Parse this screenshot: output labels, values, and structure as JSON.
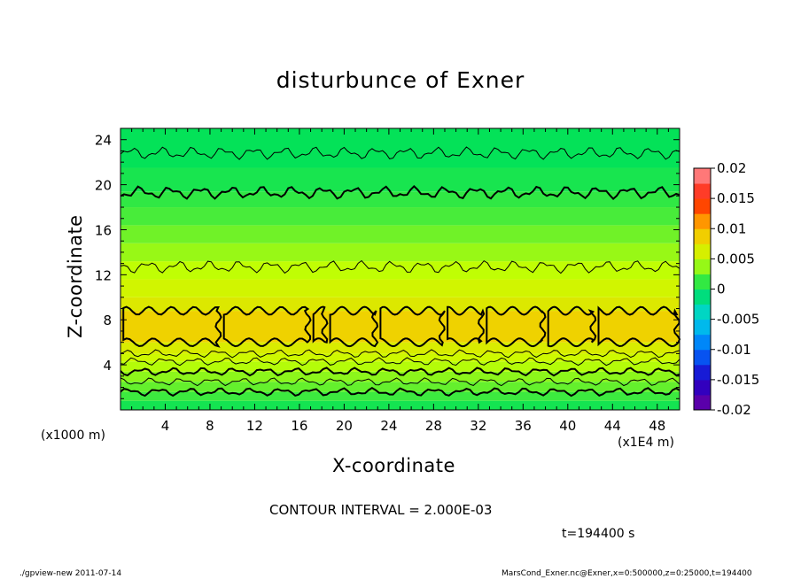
{
  "chart_data": {
    "type": "heatmap",
    "title": "disturbunce of Exner",
    "xlabel": "X-coordinate",
    "ylabel": "Z-coordinate",
    "x_unit_note": "(x1000 m)",
    "x_scale_note": "(x1E4 m)",
    "xlim": [
      0,
      50
    ],
    "ylim": [
      0,
      25
    ],
    "x_ticks": [
      4,
      8,
      12,
      16,
      20,
      24,
      28,
      32,
      36,
      40,
      44,
      48
    ],
    "y_ticks": [
      4,
      8,
      12,
      16,
      20,
      24
    ],
    "colorbar_ticks": [
      "0.02",
      "0.015",
      "0.01",
      "0.005",
      "0",
      "-0.005",
      "-0.01",
      "-0.015",
      "-0.02"
    ],
    "colorbar_range": [
      -0.02,
      0.02
    ],
    "layers": [
      {
        "z_bottom": 0,
        "z_top": 0.8,
        "value": 0.0005
      },
      {
        "z_bottom": 0.8,
        "z_top": 1.6,
        "value": 0.0015
      },
      {
        "z_bottom": 1.6,
        "z_top": 2.5,
        "value": 0.0025
      },
      {
        "z_bottom": 2.5,
        "z_top": 3.4,
        "value": 0.0035
      },
      {
        "z_bottom": 3.4,
        "z_top": 4.3,
        "value": 0.0045
      },
      {
        "z_bottom": 4.3,
        "z_top": 5.0,
        "value": 0.0055
      },
      {
        "z_bottom": 5.0,
        "z_top": 6.0,
        "value": 0.0065
      },
      {
        "z_bottom": 6.0,
        "z_top": 8.8,
        "value": 0.0085
      },
      {
        "z_bottom": 8.8,
        "z_top": 10.0,
        "value": 0.0068
      },
      {
        "z_bottom": 10.0,
        "z_top": 11.6,
        "value": 0.0058
      },
      {
        "z_bottom": 11.6,
        "z_top": 13.2,
        "value": 0.0048
      },
      {
        "z_bottom": 13.2,
        "z_top": 14.8,
        "value": 0.0038
      },
      {
        "z_bottom": 14.8,
        "z_top": 16.4,
        "value": 0.0028
      },
      {
        "z_bottom": 16.4,
        "z_top": 18.0,
        "value": 0.0018
      },
      {
        "z_bottom": 18.0,
        "z_top": 19.4,
        "value": 0.0012
      },
      {
        "z_bottom": 19.4,
        "z_top": 21.5,
        "value": 0.0006
      },
      {
        "z_bottom": 21.5,
        "z_top": 25.0,
        "value": 0.0001
      }
    ],
    "contour_interval": 0.002,
    "contour_levels_z": [
      {
        "z": 1.6,
        "bold": true
      },
      {
        "z": 2.5,
        "bold": false
      },
      {
        "z": 3.4,
        "bold": true
      },
      {
        "z": 4.3,
        "bold": false
      },
      {
        "z": 5.0,
        "bold": false
      },
      {
        "z": 12.7,
        "bold": false
      },
      {
        "z": 19.3,
        "bold": true
      },
      {
        "z": 22.8,
        "bold": false
      }
    ],
    "closed_cells_z_range": [
      6.0,
      8.8
    ],
    "closed_cells_x_edges": [
      0,
      9,
      17,
      18.5,
      23,
      29,
      32.5,
      38,
      42.5,
      50
    ]
  },
  "notes": {
    "contour": "CONTOUR INTERVAL = 2.000E-03",
    "time": "t=194400  s"
  },
  "footer": {
    "left": "./gpview-new   2011-07-14",
    "right": "MarsCond_Exner.nc@Exner,x=0:500000,z=0:25000,t=194400"
  }
}
